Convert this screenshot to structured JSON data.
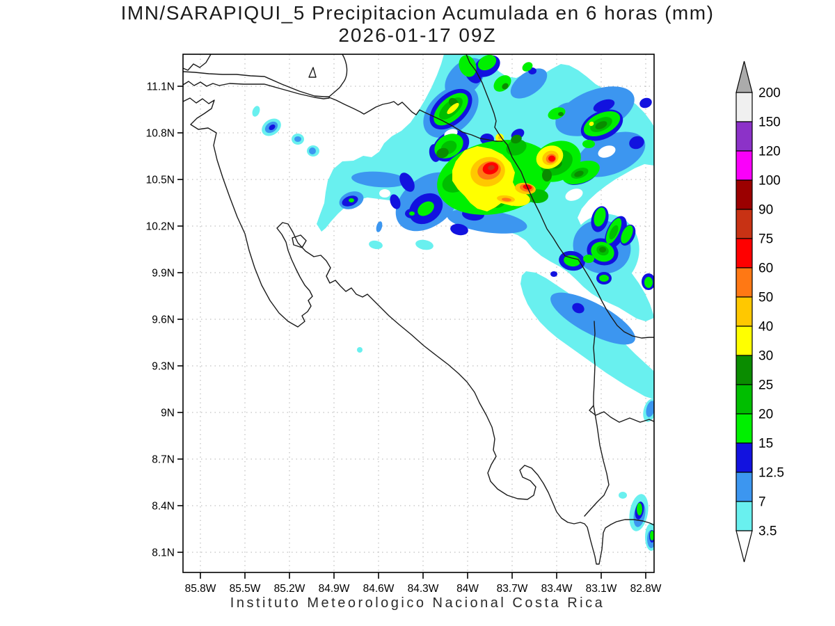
{
  "header": {
    "title_line1": "IMN/SARAPIQUI_5 Precipitacion Acumulada en 6 horas (mm)",
    "title_line2": "2026-01-17 09Z"
  },
  "footer": {
    "credit": "Instituto Meteorologico Nacional Costa Rica"
  },
  "axes": {
    "lat_ticks": [
      "11.1N",
      "10.8N",
      "10.5N",
      "10.2N",
      "9.9N",
      "9.6N",
      "9.3N",
      "9N",
      "8.7N",
      "8.4N",
      "8.1N"
    ],
    "lon_ticks": [
      "85.8W",
      "85.5W",
      "85.2W",
      "84.9W",
      "84.6W",
      "84.3W",
      "84W",
      "83.7W",
      "83.4W",
      "83.1W",
      "82.8W"
    ]
  },
  "colorbar": {
    "labels": [
      "200",
      "150",
      "120",
      "100",
      "90",
      "75",
      "60",
      "50",
      "40",
      "30",
      "25",
      "20",
      "15",
      "12.5",
      "7",
      "3.5"
    ],
    "colors": [
      "#F0F0F0",
      "#8C32C8",
      "#FA00FA",
      "#9B0000",
      "#C83214",
      "#FF0000",
      "#FF7814",
      "#FFC800",
      "#FFFF00",
      "#0A8C00",
      "#00BE00",
      "#00F000",
      "#1212DF",
      "#3C96F0",
      "#69F0EF"
    ],
    "arrow_top_color": "#ABABAB",
    "arrow_bottom_color": "#FFFFFF"
  },
  "chart_data": {
    "type": "heatmap",
    "title": "IMN/SARAPIQUI_5 Precipitacion Acumulada en 6 horas (mm)",
    "valid_time": "2026-01-17 09Z",
    "variable": "Precipitacion Acumulada en 6 horas",
    "units": "mm",
    "model_run": "IMN/SARAPIQUI_5",
    "region": "Costa Rica",
    "source": "Instituto Meteorologico Nacional Costa Rica",
    "lon_axis": {
      "tick_labels": [
        "85.8W",
        "85.5W",
        "85.2W",
        "84.9W",
        "84.6W",
        "84.3W",
        "84W",
        "83.7W",
        "83.4W",
        "83.1W",
        "82.8W"
      ],
      "min": -85.9,
      "max": -82.66
    },
    "lat_axis": {
      "tick_labels": [
        "11.1N",
        "10.8N",
        "10.5N",
        "10.2N",
        "9.9N",
        "9.6N",
        "9.3N",
        "9N",
        "8.7N",
        "8.4N",
        "8.1N"
      ],
      "min": 7.97,
      "max": 11.31
    },
    "levels_mm": [
      3.5,
      7,
      12.5,
      15,
      20,
      25,
      30,
      40,
      50,
      60,
      75,
      90,
      100,
      120,
      150,
      200
    ],
    "palette_low_to_high": [
      "#69F0EF",
      "#3C96F0",
      "#1212DF",
      "#00F000",
      "#00BE00",
      "#0A8C00",
      "#FFFF00",
      "#FFC800",
      "#FF7814",
      "#FF0000",
      "#C83214",
      "#9B0000",
      "#FA00FA",
      "#8C32C8",
      "#F0F0F0"
    ],
    "grid": true,
    "legend_position": "right-vertical",
    "pattern_summary": "SW-NE oriented precipitation band over northern / Caribbean Costa Rica and adjacent Caribbean sea; isolated small cells NW of the band; scattered light cells near the SE corner; rest of the country mostly dry",
    "maxima": [
      {
        "lon": -83.84,
        "lat": 10.57,
        "band_mm": "75-90"
      },
      {
        "lon": -83.6,
        "lat": 10.45,
        "band_mm": "60-75"
      },
      {
        "lon": -83.43,
        "lat": 10.63,
        "band_mm": "60-75"
      }
    ]
  }
}
